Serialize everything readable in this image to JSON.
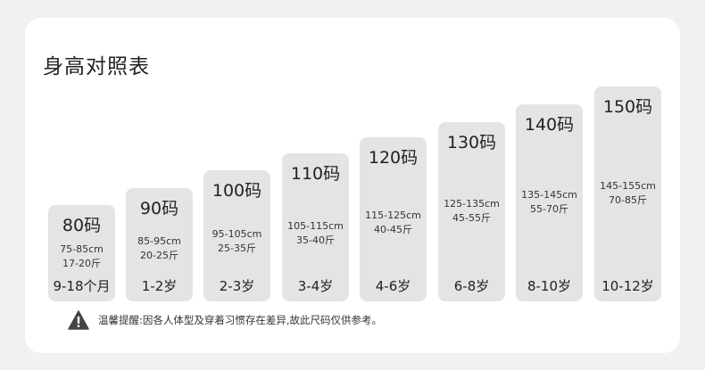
{
  "title": "身高对照表",
  "sizes": [
    {
      "size": "80码",
      "height": "75-85cm",
      "weight": "17-20斤",
      "age": "9-18个月"
    },
    {
      "size": "90码",
      "height": "85-95cm",
      "weight": "20-25斤",
      "age": "1-2岁"
    },
    {
      "size": "100码",
      "height": "95-105cm",
      "weight": "25-35斤",
      "age": "2-3岁"
    },
    {
      "size": "110码",
      "height": "105-115cm",
      "weight": "35-40斤",
      "age": "3-4岁"
    },
    {
      "size": "120码",
      "height": "115-125cm",
      "weight": "40-45斤",
      "age": "4-6岁"
    },
    {
      "size": "130码",
      "height": "125-135cm",
      "weight": "45-55斤",
      "age": "6-8岁"
    },
    {
      "size": "140码",
      "height": "135-145cm",
      "weight": "55-70斤",
      "age": "8-10岁"
    },
    {
      "size": "150码",
      "height": "145-155cm",
      "weight": "70-85斤",
      "age": "10-12岁"
    }
  ],
  "note": {
    "icon": "warning-icon",
    "text": "温馨提醒:因各人体型及穿着习惯存在差异,故此尺码仅供参考。"
  },
  "colors": {
    "column": "#e4e4e4",
    "card": "#ffffff",
    "background": "#f1f1f1"
  }
}
